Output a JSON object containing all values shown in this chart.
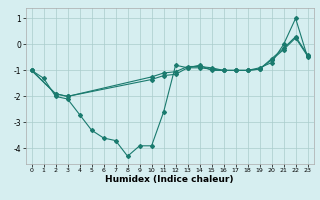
{
  "title": "",
  "xlabel": "Humidex (Indice chaleur)",
  "ylabel": "",
  "bg_color": "#d6eef0",
  "grid_color": "#aacccc",
  "line_color": "#1a7a6e",
  "xlim": [
    -0.5,
    23.5
  ],
  "ylim": [
    -4.6,
    1.4
  ],
  "yticks": [
    -4,
    -3,
    -2,
    -1,
    0,
    1
  ],
  "xticks": [
    0,
    1,
    2,
    3,
    4,
    5,
    6,
    7,
    8,
    9,
    10,
    11,
    12,
    13,
    14,
    15,
    16,
    17,
    18,
    19,
    20,
    21,
    22,
    23
  ],
  "lines": [
    {
      "x": [
        0,
        1,
        2,
        3,
        4,
        5,
        6,
        7,
        8,
        9,
        10,
        11,
        12,
        13,
        14,
        15,
        16,
        17,
        18,
        19,
        20,
        21,
        22,
        23
      ],
      "y": [
        -1.0,
        -1.3,
        -2.0,
        -2.1,
        -2.7,
        -3.3,
        -3.6,
        -3.7,
        -4.3,
        -3.9,
        -3.9,
        -2.6,
        -0.8,
        -0.9,
        -0.8,
        -1.0,
        -1.0,
        -1.0,
        -1.0,
        -0.9,
        -0.7,
        0.0,
        1.0,
        -0.5
      ]
    },
    {
      "x": [
        0,
        2,
        3,
        10,
        11,
        12,
        13,
        14,
        15,
        16,
        17,
        18,
        19,
        20,
        21,
        22,
        23
      ],
      "y": [
        -1.0,
        -1.9,
        -2.0,
        -1.25,
        -1.1,
        -1.05,
        -0.85,
        -0.85,
        -0.9,
        -1.0,
        -1.0,
        -1.0,
        -0.95,
        -0.55,
        -0.15,
        0.3,
        -0.4
      ]
    },
    {
      "x": [
        0,
        2,
        3,
        10,
        11,
        12,
        13,
        14,
        15,
        16,
        17,
        18,
        19,
        20,
        21,
        22,
        23
      ],
      "y": [
        -1.0,
        -1.9,
        -2.0,
        -1.35,
        -1.2,
        -1.15,
        -0.9,
        -0.9,
        -0.95,
        -1.0,
        -1.0,
        -1.0,
        -0.95,
        -0.6,
        -0.2,
        0.25,
        -0.45
      ]
    }
  ]
}
